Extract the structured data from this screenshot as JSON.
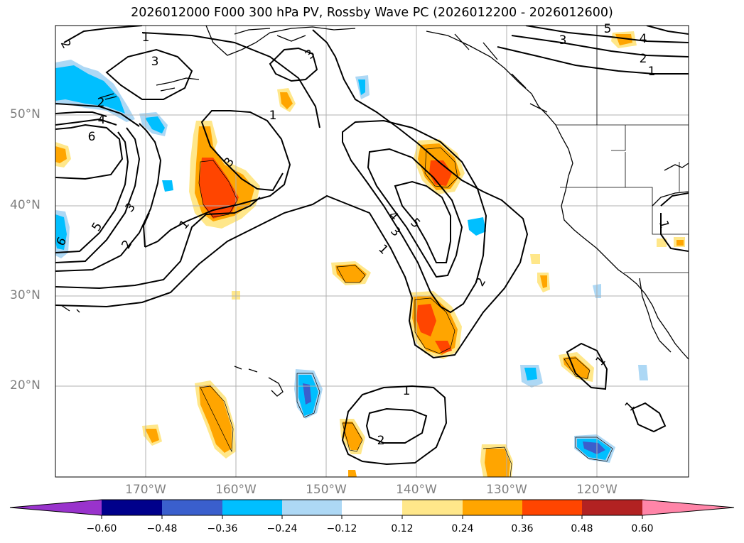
{
  "title": "2026012000 F000 300 hPa PV, Rossby Wave PC (2026012200 - 2026012600)",
  "lon_labels": [
    "170°W",
    "160°W",
    "150°W",
    "140°W",
    "130°W",
    "120°W"
  ],
  "lat_labels": [
    "50°N",
    "40°N",
    "30°N",
    "20°N"
  ],
  "colorbar": {
    "ticks": [
      "−0.60",
      "−0.48",
      "−0.36",
      "−0.24",
      "−0.12",
      "0.12",
      "0.24",
      "0.36",
      "0.48",
      "0.60"
    ],
    "colors": [
      "#9933cc",
      "#00008b",
      "#3a5fcd",
      "#00bfff",
      "#add8f5",
      "#ffffff",
      "#ffe78a",
      "#ffa500",
      "#ff4500",
      "#b22222",
      "#ff85a8"
    ]
  },
  "contour_labels": [
    {
      "text": "1"
    },
    {
      "text": "3"
    },
    {
      "text": "2"
    },
    {
      "text": "4"
    },
    {
      "text": "6"
    },
    {
      "text": "3"
    },
    {
      "text": "2"
    },
    {
      "text": "5"
    },
    {
      "text": "6"
    },
    {
      "text": "1"
    },
    {
      "text": "3"
    },
    {
      "text": "1"
    },
    {
      "text": "3"
    },
    {
      "text": "4"
    },
    {
      "text": "3"
    },
    {
      "text": "5"
    },
    {
      "text": "1"
    },
    {
      "text": "2"
    },
    {
      "text": "1"
    },
    {
      "text": "2"
    },
    {
      "text": "1"
    },
    {
      "text": "1"
    },
    {
      "text": "1"
    },
    {
      "text": "3"
    },
    {
      "text": "4"
    },
    {
      "text": "2"
    },
    {
      "text": "1"
    },
    {
      "text": "5"
    },
    {
      "text": "2"
    }
  ]
}
